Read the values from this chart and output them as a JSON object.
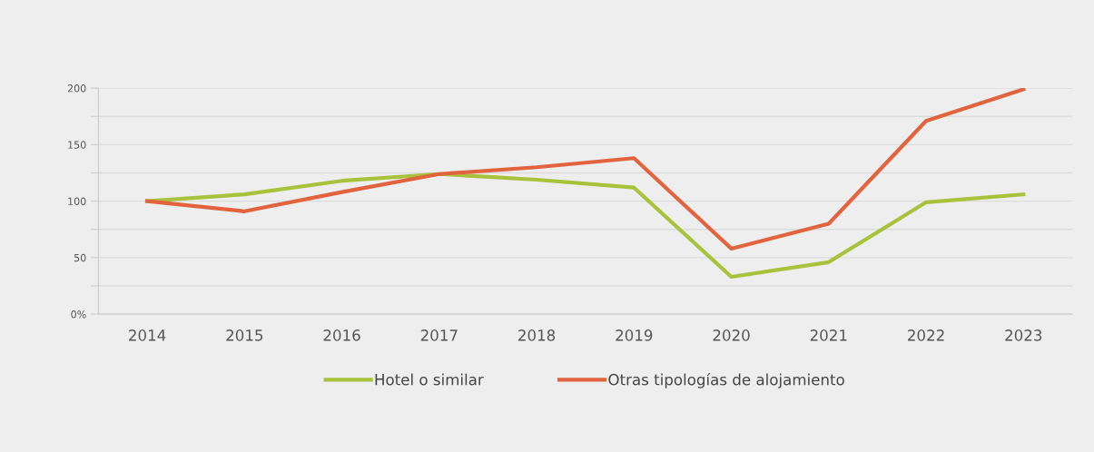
{
  "chart_data": {
    "type": "line",
    "categories": [
      "2014",
      "2015",
      "2016",
      "2017",
      "2018",
      "2019",
      "2020",
      "2021",
      "2022",
      "2023"
    ],
    "series": [
      {
        "name": "Hotel o similar",
        "color": "#a9c23c",
        "values": [
          100,
          106,
          118,
          124,
          119,
          112,
          33,
          46,
          99,
          106
        ]
      },
      {
        "name": "Otras tipologías de alojamiento",
        "color": "#e2643e",
        "values": [
          100,
          91,
          108,
          124,
          130,
          138,
          58,
          80,
          171,
          199
        ]
      }
    ],
    "ylim": [
      0,
      200
    ],
    "yticks": [
      {
        "value": 0,
        "label": "0%"
      },
      {
        "value": 25,
        "label": null
      },
      50,
      {
        "value": 75,
        "label": null
      },
      100,
      {
        "value": 125,
        "label": null
      },
      150,
      {
        "value": 175,
        "label": null
      },
      200
    ],
    "grid": "y",
    "legend": "bottom",
    "marker": "none",
    "line_style": "solid"
  }
}
